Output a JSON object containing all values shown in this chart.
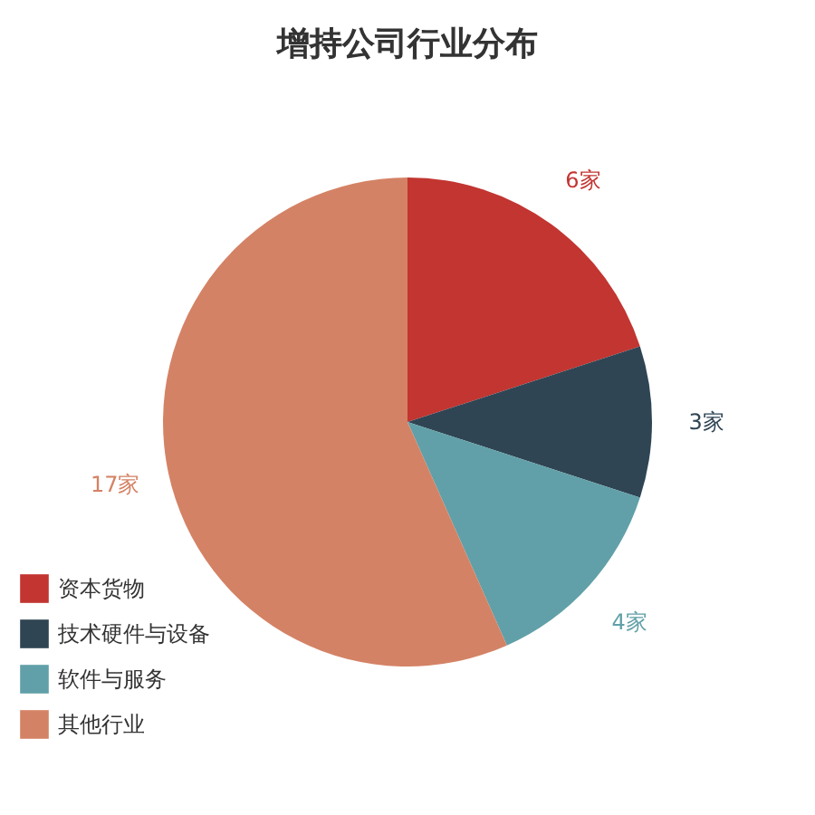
{
  "chart_data": {
    "type": "pie",
    "title": "增持公司行业分布",
    "categories": [
      "资本货物",
      "技术硬件与设备",
      "软件与服务",
      "其他行业"
    ],
    "values": [
      6,
      3,
      4,
      17
    ],
    "value_labels": [
      "6家",
      "3家",
      "4家",
      "17家"
    ],
    "colors": [
      "#c23531",
      "#2f4554",
      "#61a0a8",
      "#d48265"
    ],
    "legend": "bottom left"
  }
}
